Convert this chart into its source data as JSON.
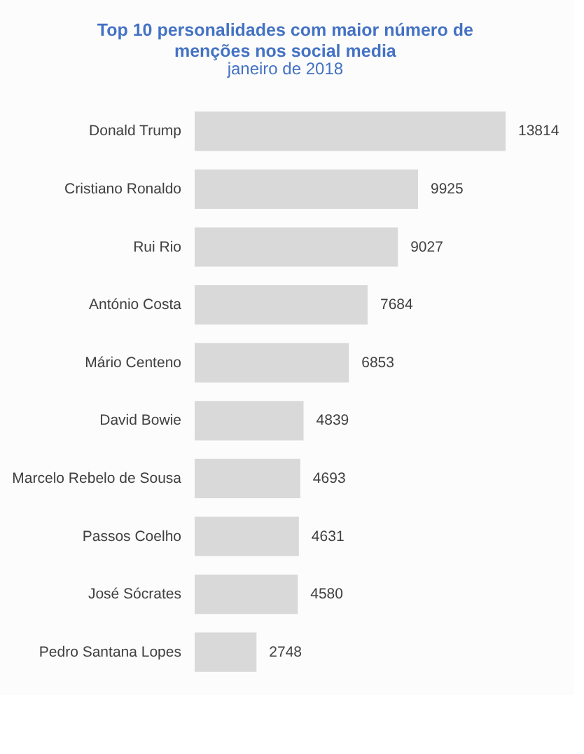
{
  "chart_data": {
    "type": "bar",
    "orientation": "horizontal",
    "title": "Top 10 personalidades com maior número de menções nos social media",
    "subtitle": "janeiro de 2018",
    "categories": [
      "Donald Trump",
      "Cristiano Ronaldo",
      "Rui Rio",
      "António Costa",
      "Mário Centeno",
      "David Bowie",
      "Marcelo Rebelo de Sousa",
      "Passos Coelho",
      "José Sócrates",
      "Pedro Santana Lopes"
    ],
    "values": [
      13814,
      9925,
      9027,
      7684,
      6853,
      4839,
      4693,
      4631,
      4580,
      2748
    ],
    "color": "#d9d9d9",
    "data_labels": true
  }
}
